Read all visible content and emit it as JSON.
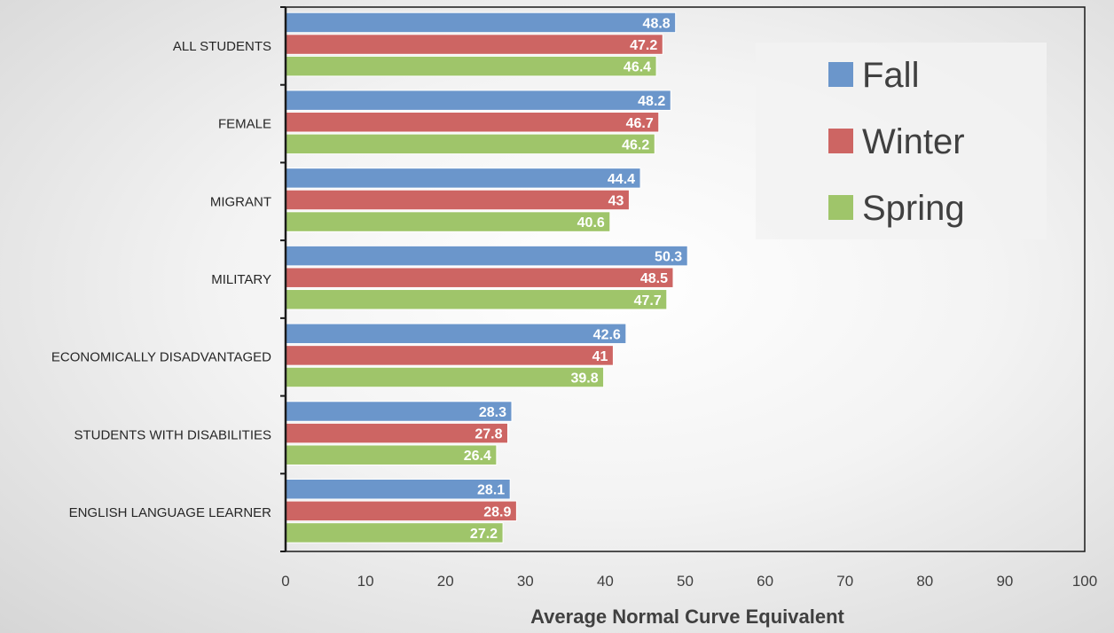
{
  "chart_data": {
    "type": "bar",
    "orientation": "horizontal",
    "categories": [
      "ALL STUDENTS",
      "FEMALE",
      "MIGRANT",
      "MILITARY",
      "ECONOMICALLY DISADVANTAGED",
      "STUDENTS WITH DISABILITIES",
      "ENGLISH LANGUAGE LEARNER"
    ],
    "series": [
      {
        "name": "Fall",
        "color": "#6b96cb",
        "values": [
          48.8,
          48.2,
          44.4,
          50.3,
          42.6,
          28.3,
          28.1
        ]
      },
      {
        "name": "Winter",
        "color": "#cd6563",
        "values": [
          47.2,
          46.7,
          43,
          48.5,
          41,
          27.8,
          28.9
        ]
      },
      {
        "name": "Spring",
        "color": "#9fc56a",
        "values": [
          46.4,
          46.2,
          40.6,
          47.7,
          39.8,
          26.4,
          27.2
        ]
      }
    ],
    "xlabel": "Average Normal Curve Equivalent",
    "ylabel": "",
    "xlim": [
      0,
      100
    ],
    "ticks": [
      0,
      10,
      20,
      30,
      40,
      50,
      60,
      70,
      80,
      90,
      100
    ],
    "grid": false,
    "legend_position": "top-right",
    "data_labels": true
  }
}
